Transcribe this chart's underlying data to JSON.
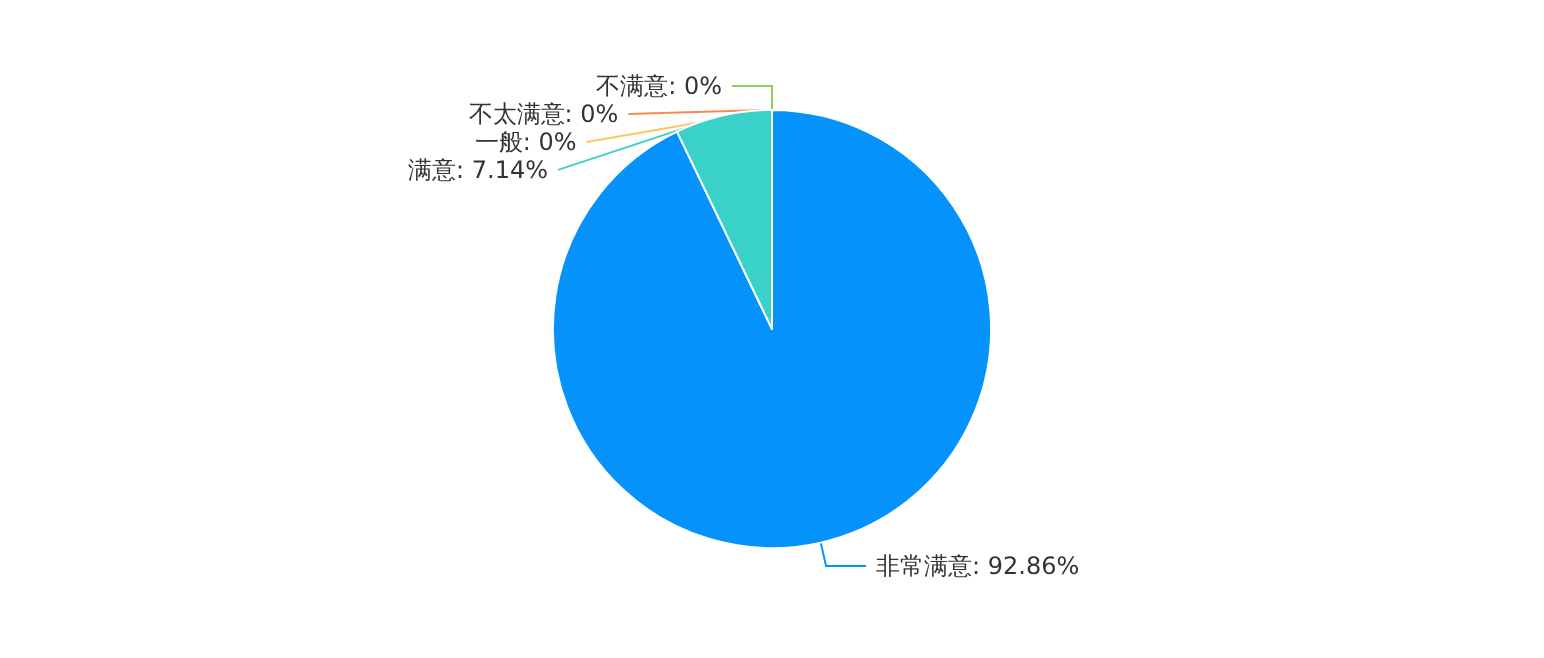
{
  "chart_data": {
    "type": "pie",
    "categories": [
      "非常满意",
      "满意",
      "不满意",
      "不太满意",
      "一般"
    ],
    "values": [
      92.86,
      7.14,
      0,
      0,
      0
    ],
    "colors": [
      "#0593fb",
      "#3ad1c9",
      "#8ad25d",
      "#f28b54",
      "#fcc75f"
    ],
    "value_labels": [
      ": 92.86%",
      ": 7.14%",
      ": 0%",
      ": 0%",
      ": 0%"
    ],
    "legend": false
  }
}
